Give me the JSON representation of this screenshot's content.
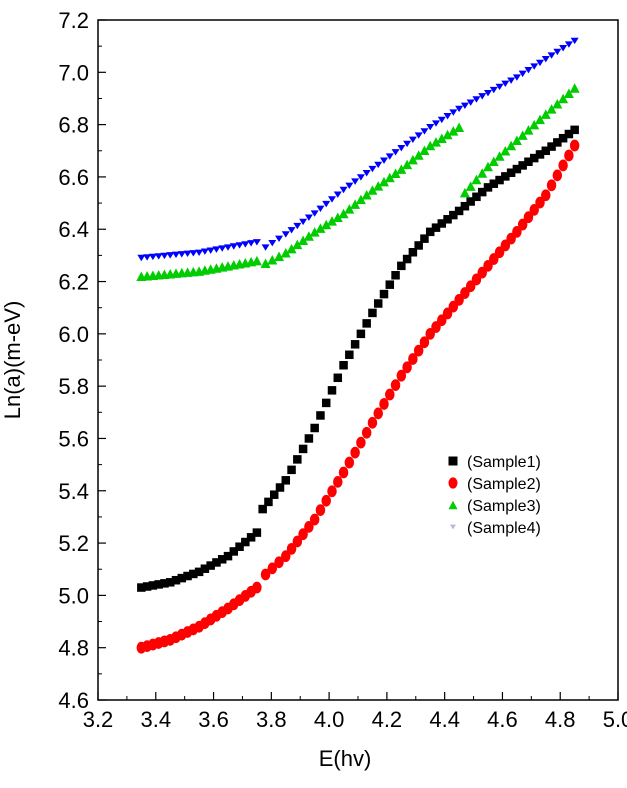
{
  "chart_data": {
    "type": "scatter",
    "title": "",
    "xlabel": "E(hv)",
    "ylabel": "Ln(a)(m-eV)",
    "xlim": [
      3.2,
      5.0
    ],
    "ylim": [
      4.6,
      7.2
    ],
    "grid": false,
    "legend_position": "right-middle",
    "x_ticks": [
      "3.2",
      "3.4",
      "3.6",
      "3.8",
      "4.0",
      "4.2",
      "4.4",
      "4.6",
      "4.8",
      "5.0"
    ],
    "y_ticks": [
      "4.6",
      "4.8",
      "5.0",
      "5.2",
      "5.4",
      "5.6",
      "5.8",
      "6.0",
      "6.2",
      "6.4",
      "6.6",
      "6.8",
      "7.0",
      "7.2"
    ],
    "series": [
      {
        "name": "(Sample1)",
        "marker": "square",
        "color": "#000000",
        "points": [
          [
            3.35,
            5.03
          ],
          [
            3.45,
            5.05
          ],
          [
            3.55,
            5.09
          ],
          [
            3.65,
            5.15
          ],
          [
            3.75,
            5.24
          ],
          [
            3.77,
            5.33
          ],
          [
            3.85,
            5.44
          ],
          [
            3.95,
            5.64
          ],
          [
            4.05,
            5.88
          ],
          [
            4.15,
            6.08
          ],
          [
            4.25,
            6.26
          ],
          [
            4.35,
            6.39
          ],
          [
            4.45,
            6.47
          ],
          [
            4.55,
            6.56
          ],
          [
            4.65,
            6.63
          ],
          [
            4.75,
            6.7
          ],
          [
            4.85,
            6.78
          ]
        ]
      },
      {
        "name": "(Sample2)",
        "marker": "circle",
        "color": "#ff0000",
        "points": [
          [
            3.35,
            4.8
          ],
          [
            3.45,
            4.83
          ],
          [
            3.55,
            4.88
          ],
          [
            3.65,
            4.95
          ],
          [
            3.75,
            5.03
          ],
          [
            3.78,
            5.08
          ],
          [
            3.85,
            5.15
          ],
          [
            3.95,
            5.29
          ],
          [
            4.05,
            5.47
          ],
          [
            4.15,
            5.66
          ],
          [
            4.25,
            5.84
          ],
          [
            4.35,
            6.0
          ],
          [
            4.45,
            6.13
          ],
          [
            4.55,
            6.26
          ],
          [
            4.65,
            6.39
          ],
          [
            4.75,
            6.53
          ],
          [
            4.85,
            6.72
          ]
        ]
      },
      {
        "name": "(Sample3)",
        "marker": "triangle-up",
        "color": "#00cc00",
        "points": [
          [
            3.35,
            6.22
          ],
          [
            3.45,
            6.23
          ],
          [
            3.55,
            6.24
          ],
          [
            3.65,
            6.26
          ],
          [
            3.75,
            6.28
          ],
          [
            3.78,
            6.27
          ],
          [
            3.85,
            6.31
          ],
          [
            3.95,
            6.39
          ],
          [
            4.05,
            6.46
          ],
          [
            4.15,
            6.55
          ],
          [
            4.25,
            6.63
          ],
          [
            4.35,
            6.72
          ],
          [
            4.45,
            6.79
          ],
          [
            4.47,
            6.54
          ],
          [
            4.55,
            6.64
          ],
          [
            4.65,
            6.74
          ],
          [
            4.75,
            6.84
          ],
          [
            4.85,
            6.94
          ]
        ]
      },
      {
        "name": "(Sample4)",
        "marker": "triangle-down",
        "color": "#0000ff",
        "points": [
          [
            3.35,
            6.29
          ],
          [
            3.45,
            6.3
          ],
          [
            3.55,
            6.31
          ],
          [
            3.65,
            6.33
          ],
          [
            3.75,
            6.35
          ],
          [
            3.78,
            6.33
          ],
          [
            3.85,
            6.38
          ],
          [
            3.95,
            6.46
          ],
          [
            4.05,
            6.55
          ],
          [
            4.15,
            6.63
          ],
          [
            4.25,
            6.71
          ],
          [
            4.35,
            6.79
          ],
          [
            4.45,
            6.86
          ],
          [
            4.55,
            6.92
          ],
          [
            4.65,
            6.98
          ],
          [
            4.75,
            7.05
          ],
          [
            4.85,
            7.12
          ]
        ]
      }
    ]
  }
}
